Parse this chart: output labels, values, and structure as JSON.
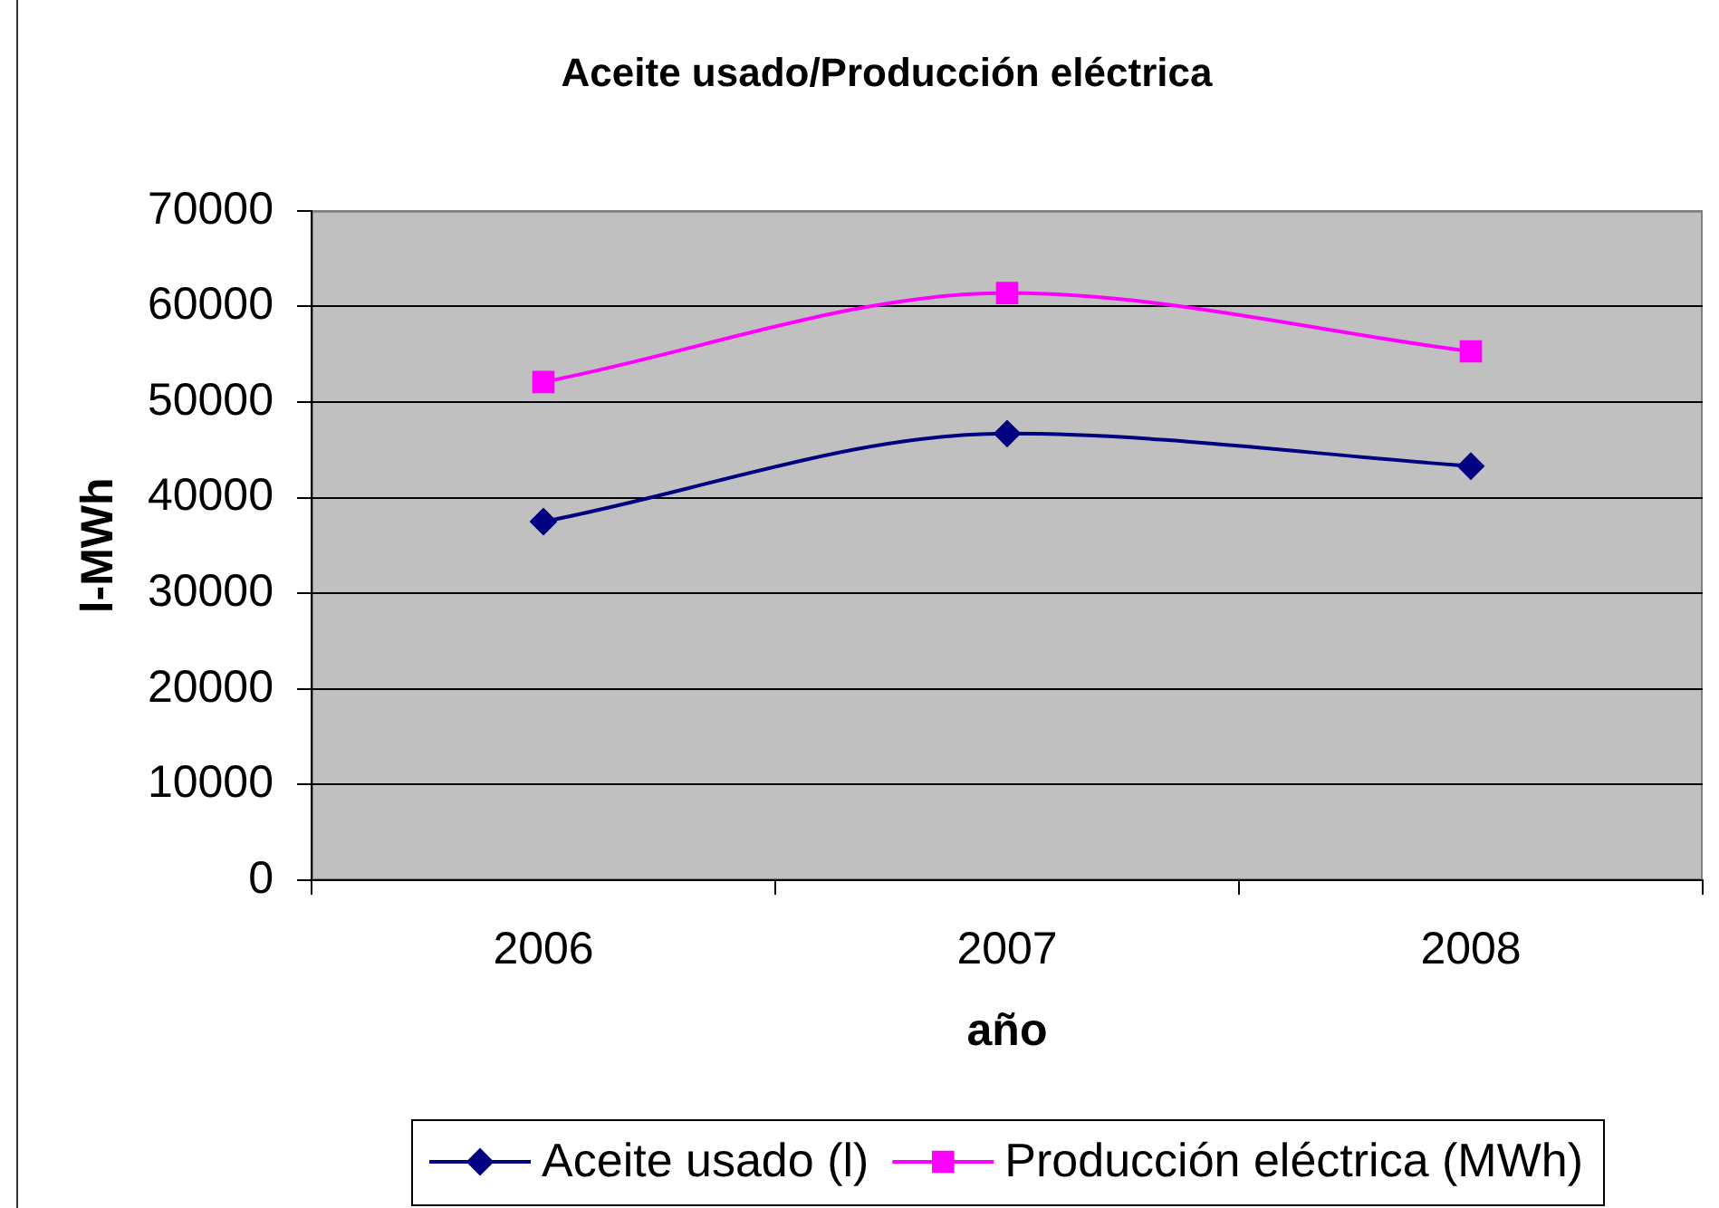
{
  "chart_data": {
    "type": "line",
    "title": "Aceite usado/Producción eléctrica",
    "xlabel": "año",
    "ylabel": "l-MWh",
    "categories": [
      "2006",
      "2007",
      "2008"
    ],
    "series": [
      {
        "name": "Aceite usado (l)",
        "color": "#000080",
        "marker": "diamond",
        "values": [
          37500,
          46700,
          43300
        ]
      },
      {
        "name": "Producción eléctrica (MWh)",
        "color": "#ff00ff",
        "marker": "square",
        "values": [
          52100,
          61400,
          55300
        ]
      }
    ],
    "ylim": [
      0,
      70000
    ],
    "yticks": [
      0,
      10000,
      20000,
      30000,
      40000,
      50000,
      60000,
      70000
    ],
    "grid": "y",
    "legend": "bottom"
  }
}
